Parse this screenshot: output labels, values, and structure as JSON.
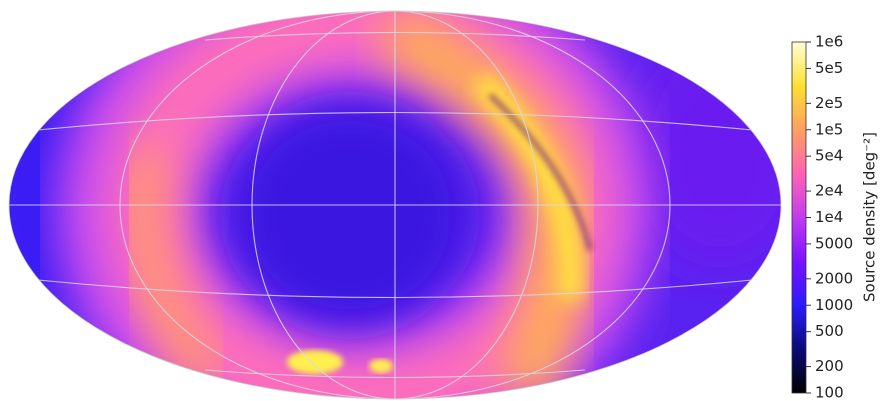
{
  "chart_data": {
    "type": "map",
    "colorbar": {
      "label": "Source density [deg⁻²]",
      "log": true,
      "clim": [
        100,
        1000000
      ],
      "ticks": [
        {
          "value": 1000000,
          "label": "1e6"
        },
        {
          "value": 500000,
          "label": "5e5"
        },
        {
          "value": 200000,
          "label": "2e5"
        },
        {
          "value": 100000,
          "label": "1e5"
        },
        {
          "value": 50000,
          "label": "5e4"
        },
        {
          "value": 20000,
          "label": "2e4"
        },
        {
          "value": 10000,
          "label": "1e4"
        },
        5000,
        2000,
        1000,
        500,
        200,
        100
      ],
      "colors": [
        "#000000",
        "#0a0a78",
        "#2a1cff",
        "#7a10ff",
        "#c23cf0",
        "#ff62b4",
        "#ffa060",
        "#ffe030",
        "#ffffd8"
      ]
    }
  }
}
